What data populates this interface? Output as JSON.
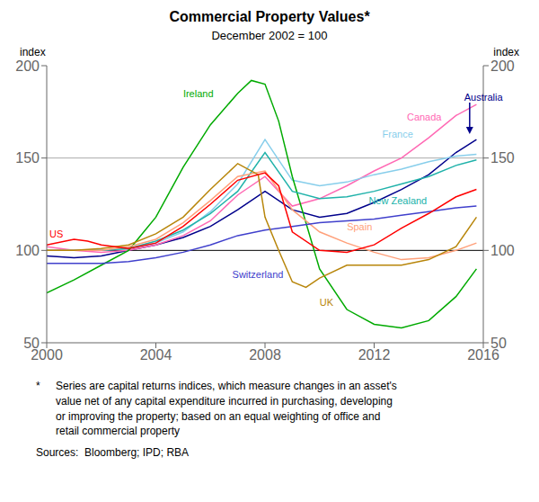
{
  "chart_data": {
    "type": "line",
    "title": "Commercial Property Values*",
    "subtitle": "December 2002 = 100",
    "y_label": "index",
    "y2_label": "index",
    "xlim": [
      2000,
      2016
    ],
    "xticks": [
      2000,
      2004,
      2008,
      2012,
      2016
    ],
    "ylim": [
      50,
      200
    ],
    "yticks": [
      50,
      100,
      150,
      200
    ],
    "y2lim": [
      50,
      200
    ],
    "y2ticks": [
      50,
      100,
      150,
      200
    ],
    "grid": false,
    "series": [
      {
        "name": "Australia",
        "color": "#00008B",
        "x": [
          2000,
          2001,
          2002,
          2003,
          2004,
          2005,
          2006,
          2007,
          2008,
          2009,
          2010,
          2011,
          2012,
          2013,
          2014,
          2015,
          2015.75
        ],
        "values": [
          97,
          96,
          97,
          100,
          103,
          107,
          113,
          122,
          132,
          122,
          118,
          120,
          126,
          133,
          141,
          153,
          160
        ]
      },
      {
        "name": "Canada",
        "color": "#FF69B4",
        "x": [
          2000,
          2001,
          2002,
          2003,
          2004,
          2005,
          2006,
          2007,
          2008,
          2009,
          2010,
          2011,
          2012,
          2013,
          2014,
          2015,
          2015.75
        ],
        "values": [
          102,
          100,
          99,
          100,
          103,
          108,
          116,
          130,
          140,
          124,
          128,
          135,
          143,
          150,
          161,
          173,
          179
        ]
      },
      {
        "name": "France",
        "color": "#87CEEB",
        "x": [
          2000,
          2001,
          2002,
          2003,
          2004,
          2005,
          2006,
          2007,
          2008,
          2009,
          2010,
          2011,
          2012,
          2013,
          2014,
          2015,
          2015.75
        ],
        "values": [
          100,
          100,
          100,
          101,
          104,
          110,
          121,
          136,
          160,
          138,
          135,
          137,
          141,
          144,
          148,
          151,
          152
        ]
      },
      {
        "name": "Ireland",
        "color": "#00AA00",
        "x": [
          2000,
          2001,
          2002,
          2003,
          2004,
          2005,
          2006,
          2007,
          2007.5,
          2008,
          2008.5,
          2009,
          2010,
          2011,
          2012,
          2013,
          2014,
          2015,
          2015.75
        ],
        "values": [
          77,
          84,
          92,
          100,
          118,
          145,
          168,
          185,
          192,
          190,
          170,
          140,
          90,
          68,
          60,
          58,
          62,
          75,
          90
        ]
      },
      {
        "name": "New Zealand",
        "color": "#20B2AA",
        "x": [
          2000,
          2001,
          2002,
          2003,
          2004,
          2005,
          2006,
          2007,
          2008,
          2009,
          2010,
          2011,
          2012,
          2013,
          2014,
          2015,
          2015.75
        ],
        "values": [
          100,
          100,
          100,
          101,
          105,
          111,
          120,
          132,
          153,
          132,
          128,
          129,
          132,
          136,
          140,
          146,
          149
        ]
      },
      {
        "name": "Spain",
        "color": "#FFA07A",
        "x": [
          2000,
          2001,
          2002,
          2003,
          2004,
          2005,
          2006,
          2007,
          2008,
          2009,
          2010,
          2011,
          2012,
          2013,
          2014,
          2015,
          2015.75
        ],
        "values": [
          100,
          100,
          100,
          102,
          106,
          115,
          127,
          140,
          143,
          122,
          110,
          104,
          99,
          95,
          96,
          100,
          104
        ]
      },
      {
        "name": "Switzerland",
        "color": "#4040CC",
        "x": [
          2000,
          2001,
          2002,
          2003,
          2004,
          2005,
          2006,
          2007,
          2008,
          2009,
          2010,
          2011,
          2012,
          2013,
          2014,
          2015,
          2015.75
        ],
        "values": [
          93,
          93,
          93,
          94,
          96,
          99,
          103,
          108,
          111,
          113,
          115,
          116,
          117,
          119,
          121,
          123,
          124
        ]
      },
      {
        "name": "UK",
        "color": "#B8860B",
        "x": [
          2000,
          2001,
          2002,
          2003,
          2004,
          2005,
          2006,
          2007,
          2007.75,
          2008,
          2008.5,
          2009,
          2009.5,
          2010,
          2011,
          2012,
          2013,
          2014,
          2015,
          2015.75
        ],
        "values": [
          100,
          100,
          101,
          103,
          109,
          118,
          133,
          147,
          141,
          118,
          100,
          83,
          80,
          85,
          92,
          92,
          92,
          95,
          102,
          118
        ]
      },
      {
        "name": "US",
        "color": "#FF0000",
        "x": [
          2000,
          2001,
          2001.5,
          2002,
          2003,
          2004,
          2005,
          2006,
          2007,
          2008,
          2008.5,
          2009,
          2010,
          2011,
          2012,
          2013,
          2014,
          2015,
          2015.75
        ],
        "values": [
          103,
          106,
          105,
          103,
          101,
          104,
          113,
          125,
          138,
          142,
          135,
          110,
          100,
          99,
          103,
          112,
          120,
          129,
          133
        ]
      }
    ],
    "annotations": [
      {
        "text": "Australia",
        "x": 2015.3,
        "y": 183,
        "color": "#00008B"
      },
      {
        "text": "Canada",
        "x": 2013.2,
        "y": 172,
        "color": "#FF69B4"
      },
      {
        "text": "France",
        "x": 2012.3,
        "y": 163,
        "color": "#87CEEB"
      },
      {
        "text": "Ireland",
        "x": 2005.0,
        "y": 185,
        "color": "#00AA00"
      },
      {
        "text": "New Zealand",
        "x": 2011.8,
        "y": 127,
        "color": "#20B2AA"
      },
      {
        "text": "Spain",
        "x": 2011.0,
        "y": 113,
        "color": "#FFA07A"
      },
      {
        "text": "Switzerland",
        "x": 2006.8,
        "y": 87,
        "color": "#4040CC"
      },
      {
        "text": "UK",
        "x": 2010.0,
        "y": 72,
        "color": "#B8860B"
      },
      {
        "text": "US",
        "x": 2000.1,
        "y": 109,
        "color": "#FF0000"
      }
    ],
    "arrow": {
      "x": 2015.5,
      "y_start": 180,
      "y_end": 163,
      "color": "#00008B"
    },
    "reference_lines": [
      {
        "y": 100,
        "color": "#000000"
      },
      {
        "y": 150,
        "color": "#aaaaaa"
      }
    ],
    "footnote_mark": "*",
    "footnote": "Series are capital returns indices, which measure changes in an asset's\nvalue net of any capital expenditure incurred in purchasing, developing\nor improving the property; based on an equal weighting of office and\nretail commercial property",
    "sources": "Sources:  Bloomberg; IPD; RBA"
  }
}
